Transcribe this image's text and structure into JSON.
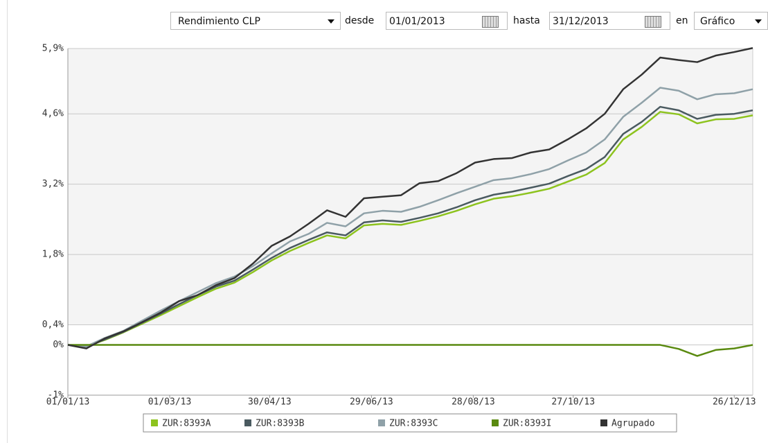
{
  "controls": {
    "metric": "Rendimiento CLP",
    "from_label": "desde",
    "from_value": "01/01/2013",
    "to_label": "hasta",
    "to_value": "31/12/2013",
    "view_label": "en",
    "view_value": "Gráfico"
  },
  "chart_data": {
    "type": "line",
    "x": [
      0,
      1,
      2,
      3,
      4,
      5,
      6,
      7,
      8,
      9,
      10,
      11,
      12,
      13,
      14,
      15,
      16,
      17,
      18,
      19,
      20,
      21,
      22,
      23,
      24,
      25,
      26,
      27,
      28,
      29,
      30,
      31,
      32,
      33,
      34,
      35,
      36,
      37
    ],
    "xlim": [
      0,
      37
    ],
    "xticks": [
      {
        "value": 0,
        "label": "01/01/13"
      },
      {
        "value": 5.5,
        "label": "01/03/13"
      },
      {
        "value": 10.9,
        "label": "30/04/13"
      },
      {
        "value": 16.4,
        "label": "29/06/13"
      },
      {
        "value": 21.9,
        "label": "28/08/13"
      },
      {
        "value": 27.3,
        "label": "27/10/13"
      },
      {
        "value": 36,
        "label": "26/12/13"
      }
    ],
    "ylim": [
      -1,
      5.9
    ],
    "yticks": [
      {
        "value": -1,
        "label": "-1%"
      },
      {
        "value": 0,
        "label": "0%"
      },
      {
        "value": 0.4,
        "label": "0,4%"
      },
      {
        "value": 1.8,
        "label": "1,8%"
      },
      {
        "value": 3.2,
        "label": "3,2%"
      },
      {
        "value": 4.6,
        "label": "4,6%"
      },
      {
        "value": 5.9,
        "label": "5,9%"
      }
    ],
    "grid": true,
    "series": [
      {
        "name": "ZUR:8393A",
        "color": "#8dc31e",
        "values": [
          0,
          -0.03,
          0.1,
          0.25,
          0.42,
          0.59,
          0.77,
          0.95,
          1.12,
          1.24,
          1.45,
          1.68,
          1.87,
          2.03,
          2.18,
          2.12,
          2.38,
          2.41,
          2.39,
          2.47,
          2.56,
          2.67,
          2.8,
          2.91,
          2.96,
          3.03,
          3.11,
          3.25,
          3.39,
          3.62,
          4.09,
          4.34,
          4.64,
          4.59,
          4.41,
          4.49,
          4.5,
          4.57
        ]
      },
      {
        "name": "ZUR:8393B",
        "color": "#4a5a60",
        "values": [
          0,
          -0.03,
          0.11,
          0.26,
          0.44,
          0.62,
          0.81,
          0.99,
          1.16,
          1.28,
          1.5,
          1.73,
          1.93,
          2.09,
          2.24,
          2.18,
          2.44,
          2.48,
          2.45,
          2.53,
          2.62,
          2.74,
          2.88,
          2.99,
          3.05,
          3.13,
          3.21,
          3.36,
          3.5,
          3.74,
          4.2,
          4.44,
          4.74,
          4.67,
          4.5,
          4.58,
          4.6,
          4.67
        ]
      },
      {
        "name": "ZUR:8393C",
        "color": "#8fa1a8",
        "values": [
          0,
          -0.03,
          0.14,
          0.28,
          0.48,
          0.68,
          0.87,
          1.05,
          1.23,
          1.36,
          1.57,
          1.82,
          2.06,
          2.21,
          2.43,
          2.36,
          2.62,
          2.67,
          2.65,
          2.75,
          2.88,
          3.02,
          3.15,
          3.28,
          3.32,
          3.4,
          3.5,
          3.67,
          3.83,
          4.09,
          4.54,
          4.82,
          5.12,
          5.06,
          4.89,
          4.99,
          5.01,
          5.09
        ]
      },
      {
        "name": "ZUR:8393I",
        "color": "#5a8a10",
        "values": [
          0,
          0,
          0,
          0,
          0,
          0,
          0,
          0,
          0,
          0,
          0,
          0,
          0,
          0,
          0,
          0,
          0,
          0,
          0,
          0,
          0,
          0,
          0,
          0,
          0,
          0,
          0,
          0,
          0,
          0,
          0,
          0,
          0,
          -0.08,
          -0.22,
          -0.1,
          -0.07,
          0
        ]
      },
      {
        "name": "Agrupado",
        "color": "#333333",
        "values": [
          0,
          -0.07,
          0.13,
          0.27,
          0.45,
          0.64,
          0.87,
          0.99,
          1.19,
          1.33,
          1.62,
          1.97,
          2.16,
          2.41,
          2.68,
          2.55,
          2.92,
          2.95,
          2.98,
          3.22,
          3.26,
          3.42,
          3.63,
          3.7,
          3.72,
          3.83,
          3.89,
          4.09,
          4.31,
          4.6,
          5.09,
          5.38,
          5.72,
          5.67,
          5.63,
          5.76,
          5.83,
          5.91
        ]
      }
    ]
  }
}
